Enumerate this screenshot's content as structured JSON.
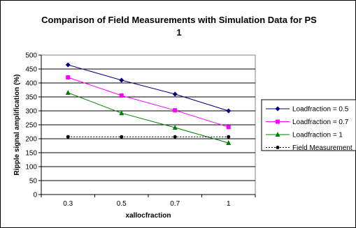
{
  "chart_data": {
    "type": "line",
    "title_line1": "Comparison of Field Measurements with Simulation Data for PS",
    "title_line2": "1",
    "xlabel": "xallocfraction",
    "ylabel": "Ripple signal amplification (%)",
    "categories": [
      "0.3",
      "0.5",
      "0.7",
      "1"
    ],
    "ylim": [
      0,
      500
    ],
    "yticks": [
      0,
      50,
      100,
      150,
      200,
      250,
      300,
      350,
      400,
      450,
      500
    ],
    "grid": true,
    "legend_position": "right",
    "series": [
      {
        "name": "Loadfraction = 0.5",
        "values": [
          465,
          410,
          360,
          300
        ],
        "color": "#000080",
        "marker": "diamond",
        "dashed": false
      },
      {
        "name": "Loadfraction = 0.7",
        "values": [
          420,
          355,
          302,
          242
        ],
        "color": "#ff00ff",
        "marker": "square",
        "dashed": false
      },
      {
        "name": "Loadfraction = 1",
        "values": [
          365,
          292,
          240,
          185
        ],
        "color": "#008000",
        "marker": "triangle",
        "dashed": false
      },
      {
        "name": "Field Measurement",
        "values": [
          207,
          207,
          207,
          207
        ],
        "color": "#000000",
        "marker": "circle",
        "dashed": true
      }
    ]
  }
}
